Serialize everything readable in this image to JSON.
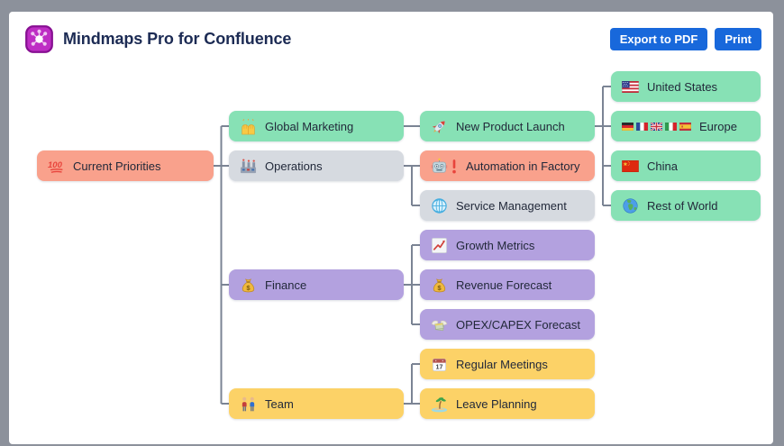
{
  "header": {
    "title": "Mindmaps Pro for Confluence",
    "buttons": [
      {
        "label": "Export to PDF"
      },
      {
        "label": "Print"
      }
    ]
  },
  "colors": {
    "accent": "#1868DB",
    "connector": "#7B8494",
    "node_green": "#87E1B5",
    "node_gray": "#D6DAE0",
    "node_purple": "#B3A1DF",
    "node_yellow": "#FCD267",
    "node_salmon": "#F9A18C"
  },
  "icon_text": {
    "hundred": "100",
    "calendar_day": "17",
    "dollar": "$"
  },
  "mindmap": {
    "nodes": [
      {
        "id": "current-priorities",
        "label": "Current Priorities",
        "icons": [
          "hundred"
        ],
        "color": "salmon",
        "row": 2,
        "col": 0,
        "parent": null
      },
      {
        "id": "global-marketing",
        "label": "Global Marketing",
        "icons": [
          "raising-hands"
        ],
        "color": "green",
        "row": 1,
        "col": 1,
        "parent": "current-priorities"
      },
      {
        "id": "operations",
        "label": "Operations",
        "icons": [
          "factory"
        ],
        "color": "gray",
        "row": 2,
        "col": 1,
        "parent": "current-priorities"
      },
      {
        "id": "finance",
        "label": "Finance",
        "icons": [
          "money-bag"
        ],
        "color": "purple",
        "row": 5,
        "col": 1,
        "parent": "current-priorities"
      },
      {
        "id": "team",
        "label": "Team",
        "icons": [
          "two-men"
        ],
        "color": "yellow",
        "row": 8,
        "col": 1,
        "parent": "current-priorities"
      },
      {
        "id": "new-product-launch",
        "label": "New Product Launch",
        "icons": [
          "rocket"
        ],
        "color": "green",
        "row": 1,
        "col": 2,
        "parent": "global-marketing"
      },
      {
        "id": "automation-in-factory",
        "label": "Automation in Factory",
        "icons": [
          "robot",
          "exclamation"
        ],
        "color": "salmon",
        "row": 2,
        "col": 2,
        "parent": "operations"
      },
      {
        "id": "service-management",
        "label": "Service Management",
        "icons": [
          "globe-grid"
        ],
        "color": "gray",
        "row": 3,
        "col": 2,
        "parent": "operations"
      },
      {
        "id": "growth-metrics",
        "label": "Growth Metrics",
        "icons": [
          "chart-up"
        ],
        "color": "purple",
        "row": 4,
        "col": 2,
        "parent": "finance"
      },
      {
        "id": "revenue-forecast",
        "label": "Revenue Forecast",
        "icons": [
          "money-bag"
        ],
        "color": "purple",
        "row": 5,
        "col": 2,
        "parent": "finance"
      },
      {
        "id": "opex-capex-forecast",
        "label": "OPEX/CAPEX Forecast",
        "icons": [
          "money-wings"
        ],
        "color": "purple",
        "row": 6,
        "col": 2,
        "parent": "finance"
      },
      {
        "id": "regular-meetings",
        "label": "Regular Meetings",
        "icons": [
          "calendar-17"
        ],
        "color": "yellow",
        "row": 7,
        "col": 2,
        "parent": "team"
      },
      {
        "id": "leave-planning",
        "label": "Leave Planning",
        "icons": [
          "island"
        ],
        "color": "yellow",
        "row": 8,
        "col": 2,
        "parent": "team"
      },
      {
        "id": "united-states",
        "label": "United States",
        "icons": [
          "flag-us"
        ],
        "color": "green",
        "row": 0,
        "col": 3,
        "parent": "new-product-launch"
      },
      {
        "id": "europe",
        "label": "Europe",
        "icons": [
          "flag-de",
          "flag-fr",
          "flag-gb",
          "flag-it",
          "flag-es"
        ],
        "color": "green",
        "row": 1,
        "col": 3,
        "parent": "new-product-launch"
      },
      {
        "id": "china",
        "label": "China",
        "icons": [
          "flag-cn"
        ],
        "color": "green",
        "row": 2,
        "col": 3,
        "parent": "new-product-launch"
      },
      {
        "id": "rest-of-world",
        "label": "Rest of World",
        "icons": [
          "earth"
        ],
        "color": "green",
        "row": 3,
        "col": 3,
        "parent": "new-product-launch"
      }
    ]
  }
}
